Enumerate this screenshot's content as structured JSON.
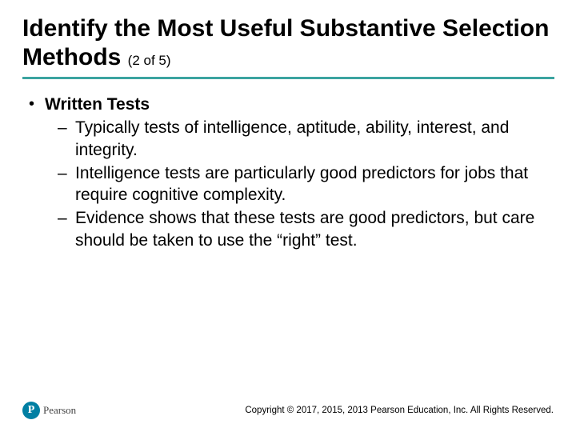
{
  "title_main": "Identify the Most Useful Substantive Selection Methods ",
  "title_sub": "(2 of 5)",
  "bullet": {
    "label": "Written Tests",
    "subs": [
      "Typically tests of intelligence, aptitude, ability, interest, and integrity.",
      "Intelligence tests are particularly good predictors for jobs that require cognitive complexity.",
      "Evidence shows that these tests are good predictors, but care should be taken to use the “right” test."
    ]
  },
  "logo": {
    "initial": "P",
    "brand": "Pearson"
  },
  "copyright": "Copyright © 2017, 2015, 2013 Pearson Education, Inc. All Rights Reserved.",
  "colors": {
    "divider": "#3ba4a0",
    "logo_bg": "#007fa3"
  }
}
